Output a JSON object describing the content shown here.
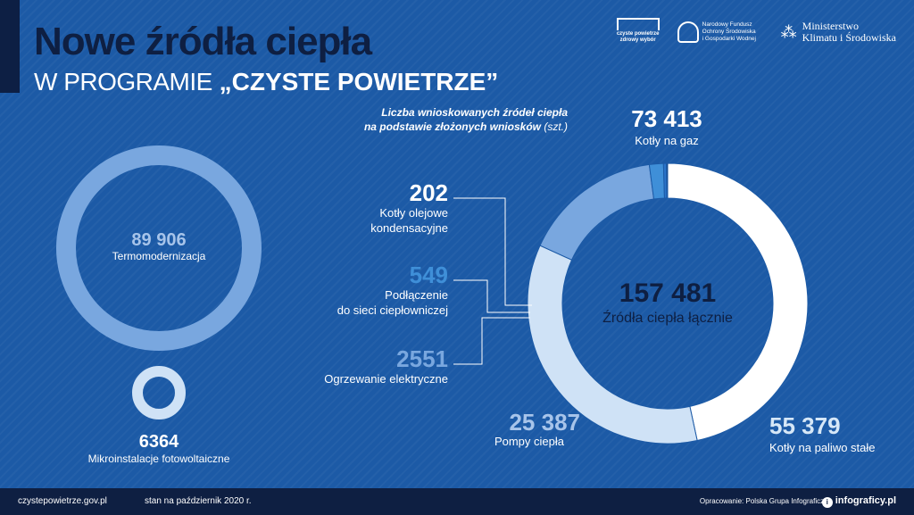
{
  "header": {
    "title_line1": "Nowe źródła ciepła",
    "title_line2_prefix": "W PROGRAMIE",
    "title_line2_program": "„CZYSTE POWIETRZE”"
  },
  "logos": {
    "czyste_powietrze": [
      "czyste powietrze",
      "zdrowy wybór"
    ],
    "nfosigw": [
      "Narodowy Fundusz",
      "Ochrony Środowiska",
      "i Gospodarki Wodnej"
    ],
    "ministerstwo": [
      "Ministerstwo",
      "Klimatu i Środowiska"
    ]
  },
  "subtitle": {
    "line1": "Liczba wnioskowanych źródeł ciepła",
    "line2": "na podstawie złożonych wniosków",
    "unit": "(szt.)"
  },
  "left": {
    "termo_value": "89 906",
    "termo_label": "Termomodernizacja",
    "pv_value": "6364",
    "pv_label": "Mikroinstalacje fotowoltaiczne"
  },
  "chart_data": {
    "type": "pie",
    "total": 157481,
    "total_text": "157 481",
    "total_label": "Źródła ciepła łącznie",
    "slices": [
      {
        "value": 73413,
        "value_text": "73 413",
        "label": "Kotły na gaz",
        "color": "#ffffff"
      },
      {
        "value": 55379,
        "value_text": "55 379",
        "label": "Kotły na paliwo stałe",
        "color": "#cfe2f6"
      },
      {
        "value": 25387,
        "value_text": "25 387",
        "label": "Pompy ciepła",
        "color": "#79a7df"
      },
      {
        "value": 2551,
        "value_text": "2551",
        "label": "Ogrzewanie elektryczne",
        "color": "#3f8fd8"
      },
      {
        "value": 549,
        "value_text": "549",
        "label": "Podłączenie do sieci ciepłowniczej",
        "color": "#2a73c8"
      },
      {
        "value": 202,
        "value_text": "202",
        "label": "Kotły olejowe kondensacyjne",
        "color": "#0e1f42"
      }
    ]
  },
  "labels": {
    "oil_line1": "Kotły olejowe",
    "oil_line2": "kondensacyjne",
    "net_line1": "Podłączenie",
    "net_line2": "do sieci ciepłowniczej"
  },
  "footer": {
    "url": "czystepowietrze.gov.pl",
    "date": "stan na październik 2020 r.",
    "credit": "Opracowanie: Polska Grupa Infograficzna",
    "brand": "infograficy.pl"
  }
}
